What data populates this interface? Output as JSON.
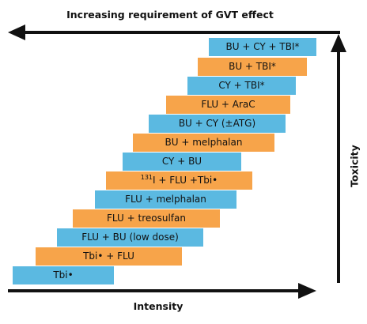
{
  "title": "Increasing requirement of GVT effect",
  "x_axis_label": "Intensity",
  "y_axis_label": "Toxicity",
  "colors": {
    "blue": "#5bb9e1",
    "orange": "#f7a44a",
    "arrow": "#111111"
  },
  "bars": [
    {
      "label": "BU + CY + TBI*",
      "color": "blue"
    },
    {
      "label": "BU + TBI*",
      "color": "orange"
    },
    {
      "label": "CY + TBI*",
      "color": "blue"
    },
    {
      "label": "FLU + AraC",
      "color": "orange"
    },
    {
      "label": "BU + CY (±ATG)",
      "color": "blue"
    },
    {
      "label": "BU + melphalan",
      "color": "orange"
    },
    {
      "label": "CY + BU",
      "color": "blue"
    },
    {
      "label_sup": "131",
      "label": "I + FLU +Tbi•",
      "color": "orange"
    },
    {
      "label": "FLU + melphalan",
      "color": "blue"
    },
    {
      "label": "FLU + treosulfan",
      "color": "orange"
    },
    {
      "label": "FLU + BU (low dose)",
      "color": "blue"
    },
    {
      "label": "Tbi• + FLU",
      "color": "orange"
    },
    {
      "label": "Tbi•",
      "color": "blue"
    }
  ]
}
